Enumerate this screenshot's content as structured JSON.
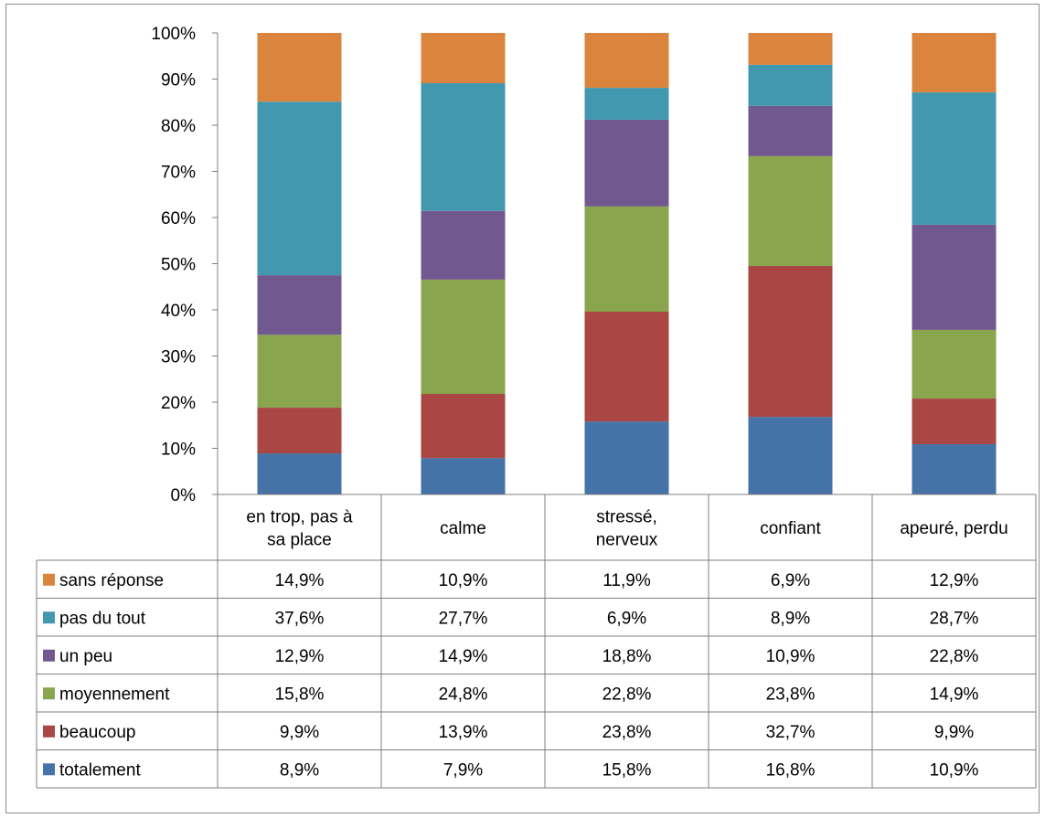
{
  "chart_data": {
    "type": "bar",
    "stacked": "percent",
    "categories": [
      "en trop, pas à sa place",
      "calme",
      "stressé, nerveux",
      "confiant",
      "apeuré, perdu"
    ],
    "category_lines": [
      [
        "en trop, pas à",
        "sa place"
      ],
      [
        "calme"
      ],
      [
        "stressé,",
        "nerveux"
      ],
      [
        "confiant"
      ],
      [
        "apeuré, perdu"
      ]
    ],
    "series": [
      {
        "name": "totalement",
        "color": "#4572A7",
        "values": [
          8.9,
          7.9,
          15.8,
          16.8,
          10.9
        ],
        "labels": [
          "8,9%",
          "7,9%",
          "15,8%",
          "16,8%",
          "10,9%"
        ]
      },
      {
        "name": "beaucoup",
        "color": "#AA4643",
        "values": [
          9.9,
          13.9,
          23.8,
          32.7,
          9.9
        ],
        "labels": [
          "9,9%",
          "13,9%",
          "23,8%",
          "32,7%",
          "9,9%"
        ]
      },
      {
        "name": "moyennement",
        "color": "#89A54E",
        "values": [
          15.8,
          24.8,
          22.8,
          23.8,
          14.9
        ],
        "labels": [
          "15,8%",
          "24,8%",
          "22,8%",
          "23,8%",
          "14,9%"
        ]
      },
      {
        "name": "un peu",
        "color": "#71588F",
        "values": [
          12.9,
          14.9,
          18.8,
          10.9,
          22.8
        ],
        "labels": [
          "12,9%",
          "14,9%",
          "18,8%",
          "10,9%",
          "22,8%"
        ]
      },
      {
        "name": "pas du tout",
        "color": "#4198AF",
        "values": [
          37.6,
          27.7,
          6.9,
          8.9,
          28.7
        ],
        "labels": [
          "37,6%",
          "27,7%",
          "6,9%",
          "8,9%",
          "28,7%"
        ]
      },
      {
        "name": "sans réponse",
        "color": "#DB843D",
        "values": [
          14.9,
          10.9,
          11.9,
          6.9,
          12.9
        ],
        "labels": [
          "14,9%",
          "10,9%",
          "11,9%",
          "6,9%",
          "12,9%"
        ]
      }
    ],
    "table_row_order": [
      "sans réponse",
      "pas du tout",
      "un peu",
      "moyennement",
      "beaucoup",
      "totalement"
    ],
    "y_ticks": [
      "0%",
      "10%",
      "20%",
      "30%",
      "40%",
      "50%",
      "60%",
      "70%",
      "80%",
      "90%",
      "100%"
    ],
    "ylim": [
      0,
      100
    ],
    "grid": false,
    "legend": "data-table-left"
  }
}
